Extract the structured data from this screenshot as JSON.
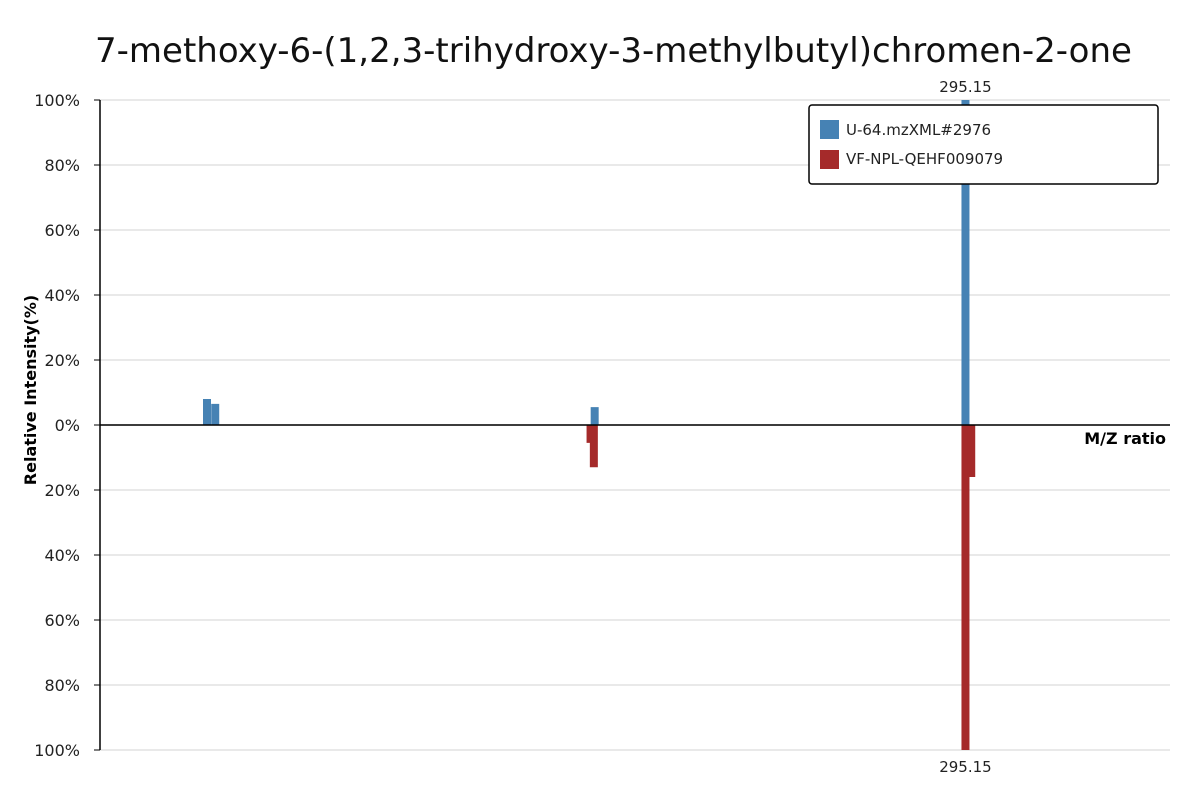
{
  "chart_data": {
    "type": "bar",
    "title": "7-methoxy-6-(1,2,3-trihydroxy-3-methylbutyl)chromen-2-one",
    "xlabel": "M/Z ratio",
    "ylabel": "Relative Intensity(%)",
    "layout": "mirror",
    "ylim": [
      -100,
      100
    ],
    "yticks": [
      "100%",
      "80%",
      "60%",
      "40%",
      "20%",
      "0%",
      "20%",
      "40%",
      "60%",
      "80%",
      "100%"
    ],
    "grid": true,
    "legend_position": "top-right",
    "series": [
      {
        "name": "U-64.mzXML#2976",
        "color": "#4682b4",
        "direction": "up",
        "peaks": [
          {
            "x": 203.0,
            "y": 8
          },
          {
            "x": 204.0,
            "y": 6.5
          },
          {
            "x": 250.1,
            "y": 5.5
          },
          {
            "x": 295.15,
            "y": 100,
            "label": "295.15"
          }
        ]
      },
      {
        "name": "VF-NPL-QEHF009079",
        "color": "#a52a2a",
        "direction": "down",
        "peaks": [
          {
            "x": 249.6,
            "y": 5.5
          },
          {
            "x": 250.0,
            "y": 13
          },
          {
            "x": 295.15,
            "y": 100,
            "label": "295.15"
          },
          {
            "x": 295.85,
            "y": 16
          }
        ]
      }
    ]
  }
}
